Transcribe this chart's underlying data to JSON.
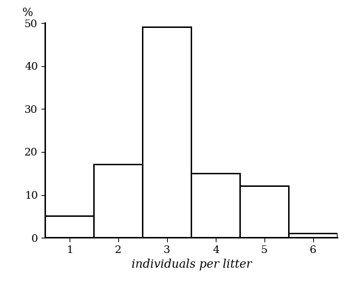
{
  "categories": [
    1,
    2,
    3,
    4,
    5,
    6
  ],
  "values": [
    5,
    17,
    49,
    15,
    12,
    1
  ],
  "bar_width": 1.0,
  "xlabel": "individuals per litter",
  "ylabel": "%",
  "xlim": [
    0.5,
    6.5
  ],
  "ylim": [
    0,
    50
  ],
  "yticks": [
    0,
    10,
    20,
    30,
    40,
    50
  ],
  "xticks": [
    1,
    2,
    3,
    4,
    5,
    6
  ],
  "background_color": "#ffffff",
  "bar_color": "#ffffff",
  "bar_edgecolor": "#000000",
  "xlabel_fontsize": 12,
  "ylabel_fontsize": 12,
  "tick_fontsize": 11,
  "linewidth": 1.5
}
